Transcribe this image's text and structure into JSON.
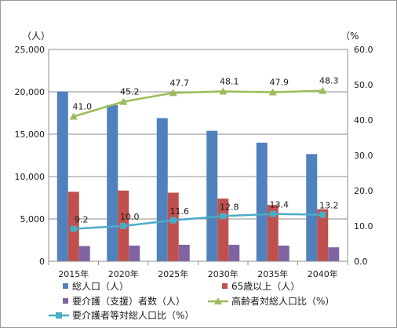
{
  "chart_data": {
    "type": "bar",
    "categories": [
      "2015年",
      "2020年",
      "2025年",
      "2030年",
      "2035年",
      "2040年"
    ],
    "left_axis": {
      "unit_label": "（人）",
      "ylim": [
        0,
        25000
      ],
      "ticks": [
        "0",
        "5,000",
        "10,000",
        "15,000",
        "20,000",
        "25,000"
      ]
    },
    "right_axis": {
      "unit_label": "（%",
      "ylim": [
        0,
        60
      ],
      "ticks": [
        "0.0",
        "10.0",
        "20.0",
        "30.0",
        "40.0",
        "50.0",
        "60.0"
      ]
    },
    "series": [
      {
        "name": "総人口（人）",
        "kind": "bar",
        "axis": "left",
        "color": "#4F81BD",
        "values": [
          20050,
          18450,
          16900,
          15400,
          14000,
          12650
        ]
      },
      {
        "name": "65歳以上（人）",
        "kind": "bar",
        "axis": "left",
        "color": "#C0504D",
        "values": [
          8200,
          8350,
          8100,
          7400,
          6650,
          6150
        ]
      },
      {
        "name": "要介護（支援）者数（人）",
        "kind": "bar",
        "axis": "left",
        "color": "#8064A2",
        "values": [
          1800,
          1850,
          1950,
          1950,
          1850,
          1650
        ]
      },
      {
        "name": "高齢者対総人口比（%）",
        "kind": "line",
        "axis": "right",
        "color": "#9BBB59",
        "marker": "triangle",
        "values": [
          41.0,
          45.2,
          47.7,
          48.1,
          47.9,
          48.3
        ],
        "labels": [
          "41.0",
          "45.2",
          "47.7",
          "48.1",
          "47.9",
          "48.3"
        ]
      },
      {
        "name": "要介護者等対総人口比（%）",
        "kind": "line",
        "axis": "right",
        "color": "#4BACC6",
        "marker": "square",
        "values": [
          9.2,
          10.0,
          11.6,
          12.8,
          13.4,
          13.2
        ],
        "labels": [
          "9.2",
          "10.0",
          "11.6",
          "12.8",
          "13.4",
          "13.2"
        ]
      }
    ],
    "grid": true,
    "legend_position": "bottom"
  }
}
